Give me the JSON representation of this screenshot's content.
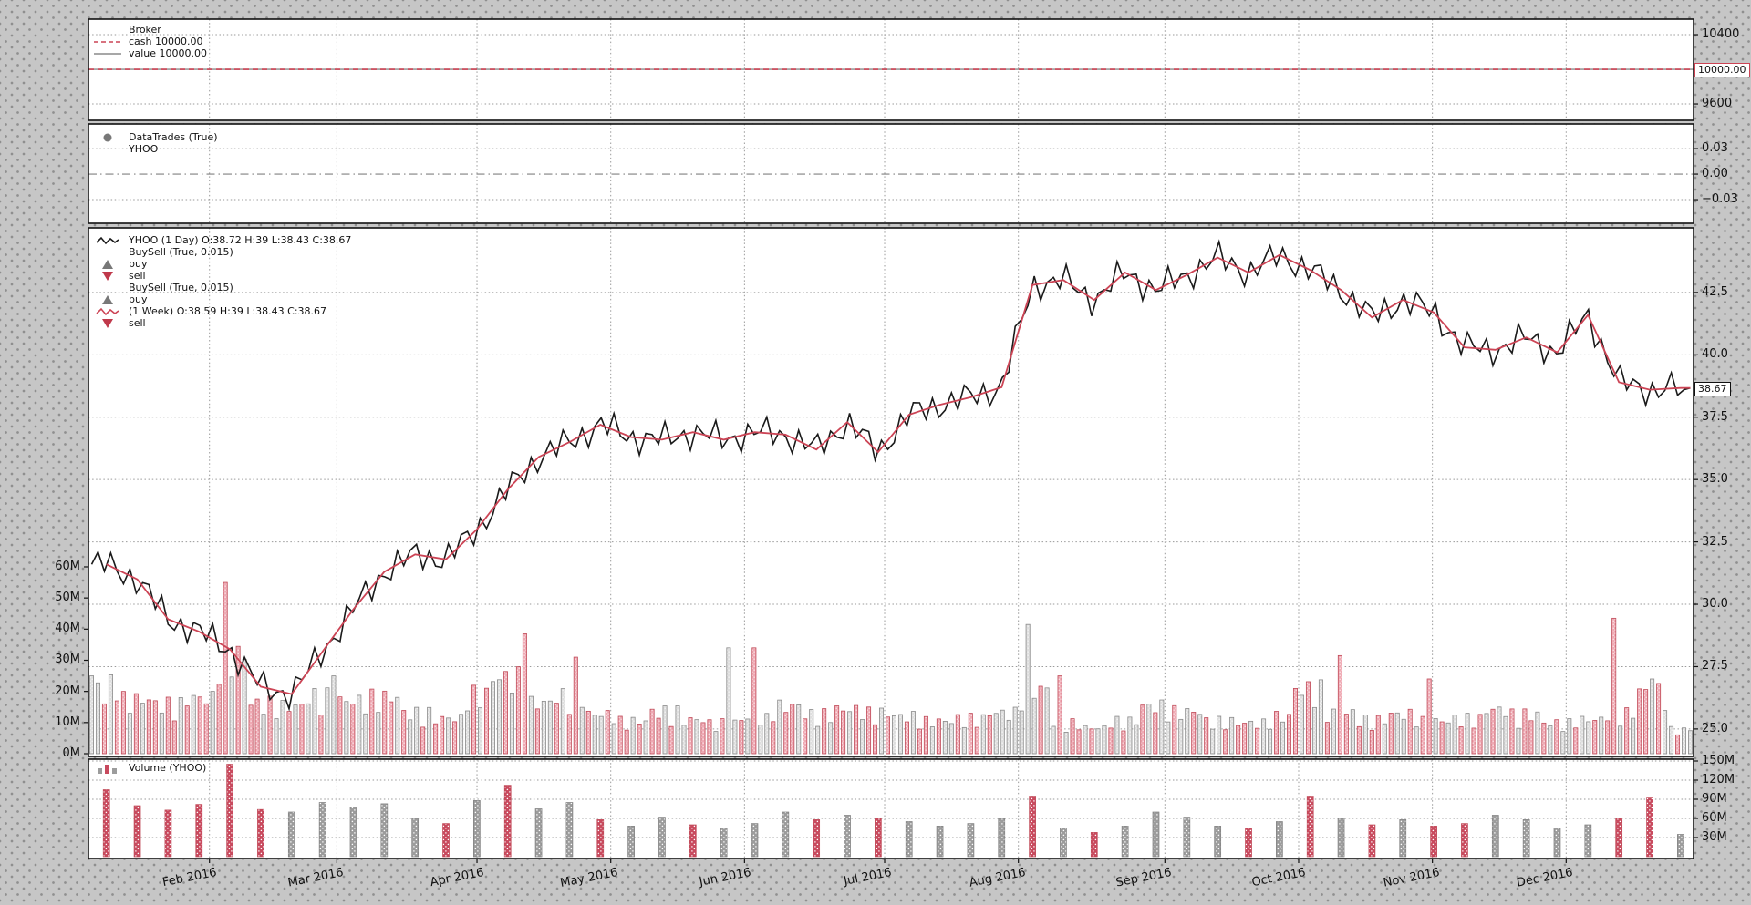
{
  "window_title": "",
  "colors": {
    "red_line": "#cc4455",
    "black_line": "#1a1a1a",
    "gray_line": "#8a8a8a",
    "marker_gray": "#787878",
    "marker_red": "#c0394b",
    "vol_up_fill": "#dedede",
    "vol_up_edge": "#8a8a8a",
    "vol_down_fill": "#efaab4",
    "vol_down_edge": "#c04a58",
    "wvol_up": "#9c9c9c",
    "wvol_down": "#c84a5e",
    "grid": "#9a9a9a",
    "background": "#c6c6c6"
  },
  "broker": {
    "legend_title": "Broker",
    "legend_cash": "cash 10000.00",
    "legend_value": "value 10000.00",
    "yticks": [
      "10400",
      "9600"
    ],
    "last_value_label": "10000.00"
  },
  "trades": {
    "legend_title": "DataTrades (True)",
    "legend_symbol": "YHOO",
    "yticks": [
      "0.03",
      "0.00",
      "−0.03"
    ]
  },
  "price": {
    "legend": [
      {
        "swatch": "line-black",
        "label": "YHOO (1 Day) O:38.72 H:39 L:38.43 C:38.67"
      },
      {
        "swatch": "none",
        "label": "BuySell (True, 0.015)"
      },
      {
        "swatch": "tri-up",
        "label": "buy"
      },
      {
        "swatch": "tri-down",
        "label": "sell"
      },
      {
        "swatch": "none",
        "label": "BuySell (True, 0.015)"
      },
      {
        "swatch": "tri-up",
        "label": "buy"
      },
      {
        "swatch": "line-red",
        "label": "(1 Week) O:38.59 H:39 L:38.43 C:38.67"
      },
      {
        "swatch": "tri-down",
        "label": "sell"
      }
    ],
    "yticks": [
      "42.5",
      "40.0",
      "37.5",
      "35.0",
      "32.5",
      "30.0",
      "27.5",
      "25.0"
    ],
    "last_value_label": "38.67"
  },
  "volume_overlay": {
    "yticks": [
      "60M",
      "50M",
      "40M",
      "30M",
      "20M",
      "10M",
      "0M"
    ]
  },
  "volume_panel": {
    "legend_label": "Volume (YHOO)",
    "yticks": [
      "150M",
      "120M",
      "90M",
      "60M",
      "30M"
    ]
  },
  "xaxis": {
    "labels": [
      "Feb 2016",
      "Mar 2016",
      "Apr 2016",
      "May 2016",
      "Jun 2016",
      "Jul 2016",
      "Aug 2016",
      "Sep 2016",
      "Oct 2016",
      "Nov 2016",
      "Dec 2016"
    ]
  },
  "chart_data": [
    {
      "type": "line",
      "name": "broker-cash-value",
      "title": "Broker",
      "series": [
        {
          "name": "cash",
          "constant_value": 10000.0
        },
        {
          "name": "value",
          "constant_value": 10000.0
        }
      ],
      "yticks": [
        9600,
        10400
      ],
      "ylim": [
        9411,
        10579
      ],
      "annotation": 10000.0
    },
    {
      "type": "scatter",
      "name": "datatrades",
      "title": "DataTrades (True) YHOO",
      "points": [],
      "yticks": [
        -0.03,
        0.0,
        0.03
      ],
      "ylim": [
        -0.0578,
        0.059
      ],
      "zero_line": 0.0
    },
    {
      "type": "line",
      "name": "price-yhoo",
      "title": "YHOO (1 Day) O:38.72 H:39 L:38.43 C:38.67 / (1 Week) O:38.59 H:39 L:38.43 C:38.67",
      "x_start": "Jan 2016",
      "x_end": "Dec 2016",
      "total_days": 252,
      "weekly_close": [
        31.6,
        31.0,
        29.4,
        28.9,
        28.2,
        26.7,
        26.4,
        28.1,
        29.8,
        31.3,
        32.0,
        31.8,
        33.0,
        34.6,
        35.9,
        36.5,
        37.2,
        36.7,
        36.6,
        36.9,
        36.6,
        36.9,
        36.8,
        36.2,
        37.3,
        36.1,
        37.6,
        38.0,
        38.3,
        38.7,
        42.8,
        43.0,
        42.2,
        43.3,
        42.6,
        43.2,
        43.9,
        43.3,
        44.0,
        43.4,
        42.6,
        41.5,
        42.2,
        41.7,
        40.3,
        40.2,
        40.7,
        40.1,
        41.6,
        38.9,
        38.6,
        38.67
      ],
      "daily_jitter_amp": [
        0.5,
        0.22
      ],
      "last_close": 38.67,
      "yticks": [
        25.0,
        27.5,
        30.0,
        32.5,
        35.0,
        37.5,
        40.0,
        42.5
      ],
      "ylim": [
        23.9,
        45.09
      ],
      "annotation": 38.67
    },
    {
      "type": "bar",
      "name": "volume-daily-overlay",
      "unit": "M",
      "yticks": [
        0,
        10,
        20,
        30,
        40,
        50,
        60
      ],
      "base_from": "weekly_volume / 5",
      "spikes": {
        "0": 25,
        "2": 16,
        "21": 55,
        "38": 25,
        "68": 38.5,
        "76": 31,
        "100": 34,
        "104": 34,
        "147": 41.5,
        "152": 25,
        "196": 31.5,
        "210": 24,
        "239": 43.5,
        "245": 24
      }
    },
    {
      "type": "bar",
      "name": "volume-weekly",
      "title": "Volume (YHOO)",
      "unit": "M",
      "values": [
        105,
        80,
        73,
        82,
        145,
        74,
        70,
        85,
        78,
        83,
        60,
        52,
        88,
        112,
        75,
        85,
        58,
        48,
        62,
        50,
        45,
        52,
        70,
        58,
        65,
        60,
        55,
        48,
        52,
        60,
        95,
        45,
        38,
        48,
        70,
        62,
        48,
        45,
        55,
        95,
        60,
        50,
        58,
        48,
        52,
        65,
        58,
        45,
        50,
        60,
        92,
        35
      ],
      "colors": [
        "r",
        "r",
        "r",
        "r",
        "r",
        "r",
        "g",
        "g",
        "g",
        "g",
        "g",
        "r",
        "g",
        "r",
        "g",
        "g",
        "r",
        "g",
        "g",
        "r",
        "g",
        "g",
        "g",
        "r",
        "g",
        "r",
        "g",
        "g",
        "g",
        "g",
        "r",
        "g",
        "r",
        "g",
        "g",
        "g",
        "g",
        "r",
        "g",
        "r",
        "g",
        "r",
        "g",
        "r",
        "r",
        "g",
        "g",
        "g",
        "g",
        "r",
        "r",
        "g"
      ],
      "yticks": [
        30,
        60,
        90,
        120,
        150
      ],
      "ylim": [
        0,
        155
      ]
    }
  ],
  "x_month_tick_days": [
    19,
    39,
    61,
    82,
    103,
    125,
    146,
    169,
    190,
    211,
    232
  ]
}
